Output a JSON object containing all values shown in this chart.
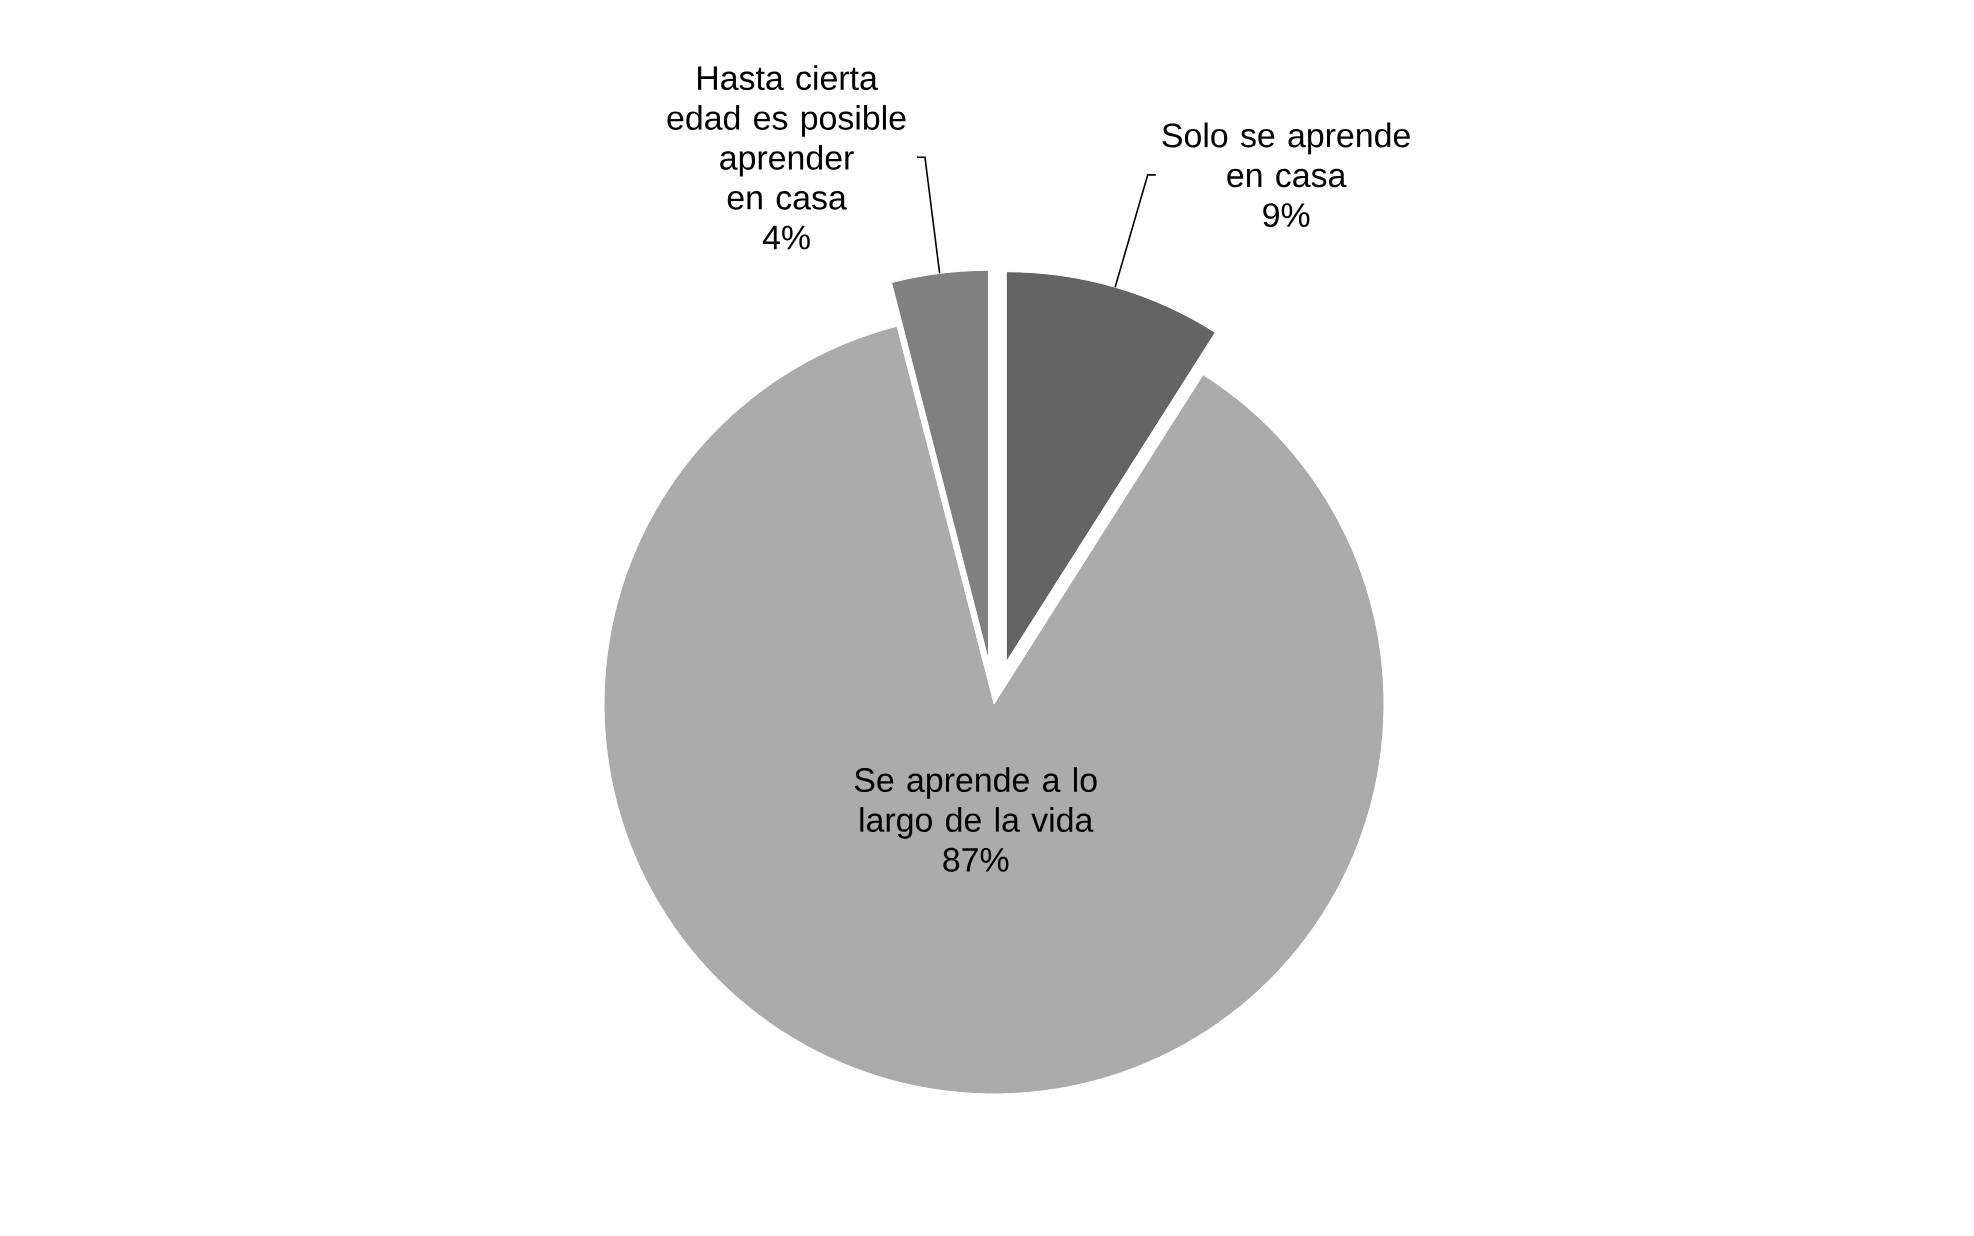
{
  "chart_data": {
    "type": "pie",
    "categories": [
      "Solo se aprende en casa",
      "Se aprende a lo largo de la vida",
      "Hasta cierta edad es posible aprender en casa"
    ],
    "values": [
      9,
      87,
      4
    ],
    "colors": [
      "#646464",
      "#ababab",
      "#808080"
    ],
    "value_labels": [
      "9%",
      "87%",
      "4%"
    ]
  }
}
